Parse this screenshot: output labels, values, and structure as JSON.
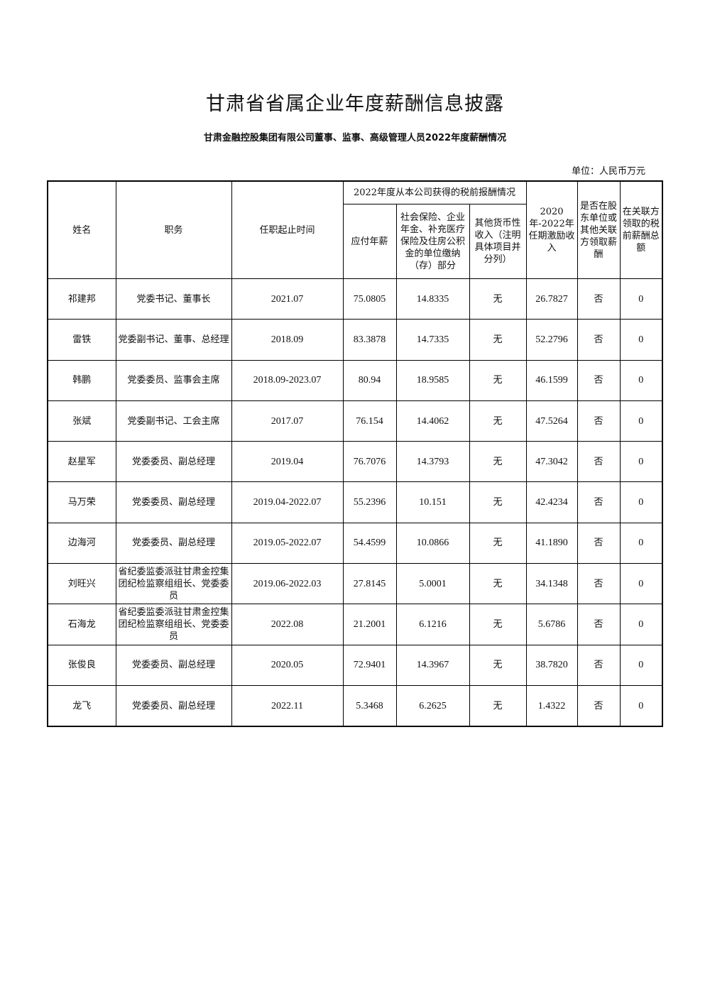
{
  "title": "甘肃省省属企业年度薪酬信息披露",
  "subtitle": "甘肃金融控股集团有限公司董事、监事、高级管理人员2022年度薪酬情况",
  "unit": "单位：人民币万元",
  "headers": {
    "name": "姓名",
    "position": "职务",
    "term": "任职起止时间",
    "group": "2022年度从本公司获得的税前报酬情况",
    "salary": "应付年薪",
    "insurance": "社会保险、企业年金、补充医疗保险及住房公积金的单位缴纳（存）部分",
    "other": "其他货币性收入（注明具体项目并分列）",
    "incentive": "2020年-2022年任期激励收入",
    "shareholder": "是否在股东单位或其他关联方领取薪酬",
    "related": "在关联方领取的税前薪酬总额"
  },
  "rows": [
    {
      "name": "祁建邦",
      "position": "党委书记、董事长",
      "term": "2021.07",
      "salary": "75.0805",
      "insurance": "14.8335",
      "other": "无",
      "incentive": "26.7827",
      "shareholder": "否",
      "related": "0"
    },
    {
      "name": "雷铁",
      "position": "党委副书记、董事、总经理",
      "term": "2018.09",
      "salary": "83.3878",
      "insurance": "14.7335",
      "other": "无",
      "incentive": "52.2796",
      "shareholder": "否",
      "related": "0"
    },
    {
      "name": "韩鹏",
      "position": "党委委员、监事会主席",
      "term": "2018.09-2023.07",
      "salary": "80.94",
      "insurance": "18.9585",
      "other": "无",
      "incentive": "46.1599",
      "shareholder": "否",
      "related": "0"
    },
    {
      "name": "张斌",
      "position": "党委副书记、工会主席",
      "term": "2017.07",
      "salary": "76.154",
      "insurance": "14.4062",
      "other": "无",
      "incentive": "47.5264",
      "shareholder": "否",
      "related": "0"
    },
    {
      "name": "赵星军",
      "position": "党委委员、副总经理",
      "term": "2019.04",
      "salary": "76.7076",
      "insurance": "14.3793",
      "other": "无",
      "incentive": "47.3042",
      "shareholder": "否",
      "related": "0"
    },
    {
      "name": "马万荣",
      "position": "党委委员、副总经理",
      "term": "2019.04-2022.07",
      "salary": "55.2396",
      "insurance": "10.151",
      "other": "无",
      "incentive": "42.4234",
      "shareholder": "否",
      "related": "0"
    },
    {
      "name": "边海河",
      "position": "党委委员、副总经理",
      "term": "2019.05-2022.07",
      "salary": "54.4599",
      "insurance": "10.0866",
      "other": "无",
      "incentive": "41.1890",
      "shareholder": "否",
      "related": "0"
    },
    {
      "name": "刘旺兴",
      "position": "省纪委监委派驻甘肃金控集团纪检监察组组长、党委委员",
      "term": "2019.06-2022.03",
      "salary": "27.8145",
      "insurance": "5.0001",
      "other": "无",
      "incentive": "34.1348",
      "shareholder": "否",
      "related": "0"
    },
    {
      "name": "石海龙",
      "position": "省纪委监委派驻甘肃金控集团纪检监察组组长、党委委员",
      "term": "2022.08",
      "salary": "21.2001",
      "insurance": "6.1216",
      "other": "无",
      "incentive": "5.6786",
      "shareholder": "否",
      "related": "0"
    },
    {
      "name": "张俊良",
      "position": "党委委员、副总经理",
      "term": "2020.05",
      "salary": "72.9401",
      "insurance": "14.3967",
      "other": "无",
      "incentive": "38.7820",
      "shareholder": "否",
      "related": "0"
    },
    {
      "name": "龙飞",
      "position": "党委委员、副总经理",
      "term": "2022.11",
      "salary": "5.3468",
      "insurance": "6.2625",
      "other": "无",
      "incentive": "1.4322",
      "shareholder": "否",
      "related": "0"
    }
  ]
}
